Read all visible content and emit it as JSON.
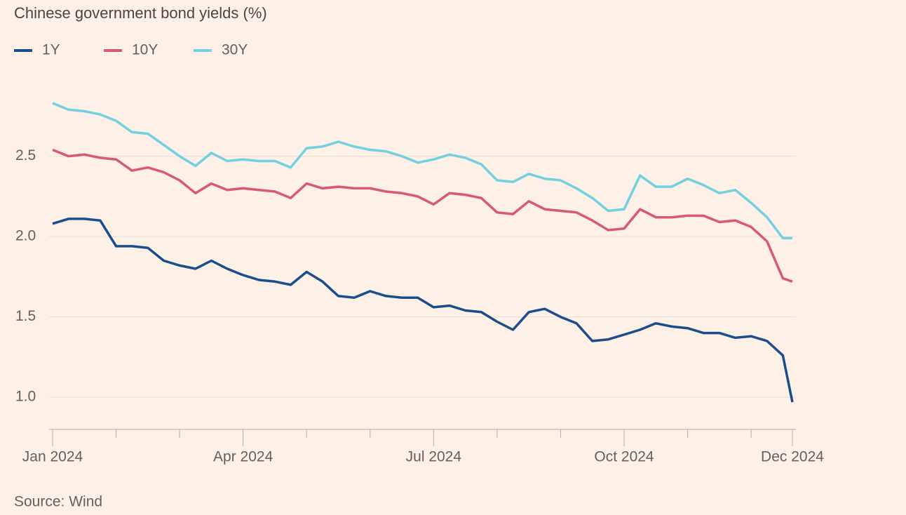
{
  "chart_data": {
    "type": "line",
    "title": "Chinese government bond yields (%)",
    "source": "Source: Wind",
    "x": [
      0,
      0.25,
      0.5,
      0.75,
      1,
      1.25,
      1.5,
      1.75,
      2,
      2.25,
      2.5,
      2.75,
      3,
      3.25,
      3.5,
      3.75,
      4,
      4.25,
      4.5,
      4.75,
      5,
      5.25,
      5.5,
      5.75,
      6,
      6.25,
      6.5,
      6.75,
      7,
      7.25,
      7.5,
      7.75,
      8,
      8.25,
      8.5,
      8.75,
      9,
      9.25,
      9.5,
      9.75,
      10,
      10.25,
      10.5,
      10.75,
      11,
      11.25,
      11.5,
      11.65
    ],
    "series": [
      {
        "name": "1Y",
        "color": "#1b4d8c",
        "values": [
          2.08,
          2.11,
          2.11,
          2.1,
          1.94,
          1.94,
          1.93,
          1.85,
          1.82,
          1.8,
          1.85,
          1.8,
          1.76,
          1.73,
          1.72,
          1.7,
          1.78,
          1.72,
          1.63,
          1.62,
          1.66,
          1.63,
          1.62,
          1.62,
          1.56,
          1.57,
          1.54,
          1.53,
          1.47,
          1.42,
          1.53,
          1.55,
          1.5,
          1.46,
          1.35,
          1.36,
          1.39,
          1.42,
          1.46,
          1.44,
          1.43,
          1.4,
          1.4,
          1.37,
          1.38,
          1.35,
          1.26,
          0.97
        ]
      },
      {
        "name": "10Y",
        "color": "#d6597a",
        "values": [
          2.54,
          2.5,
          2.51,
          2.49,
          2.48,
          2.41,
          2.43,
          2.4,
          2.35,
          2.27,
          2.33,
          2.29,
          2.3,
          2.29,
          2.28,
          2.24,
          2.33,
          2.3,
          2.31,
          2.3,
          2.3,
          2.28,
          2.27,
          2.25,
          2.2,
          2.27,
          2.26,
          2.24,
          2.15,
          2.14,
          2.22,
          2.17,
          2.16,
          2.15,
          2.1,
          2.04,
          2.05,
          2.17,
          2.12,
          2.12,
          2.13,
          2.13,
          2.09,
          2.1,
          2.06,
          1.97,
          1.74,
          1.72
        ]
      },
      {
        "name": "30Y",
        "color": "#72d0e0",
        "values": [
          2.83,
          2.79,
          2.78,
          2.76,
          2.72,
          2.65,
          2.64,
          2.57,
          2.5,
          2.44,
          2.52,
          2.47,
          2.48,
          2.47,
          2.47,
          2.43,
          2.55,
          2.56,
          2.59,
          2.56,
          2.54,
          2.53,
          2.5,
          2.46,
          2.48,
          2.51,
          2.49,
          2.45,
          2.35,
          2.34,
          2.39,
          2.36,
          2.35,
          2.3,
          2.24,
          2.16,
          2.17,
          2.38,
          2.31,
          2.31,
          2.36,
          2.32,
          2.27,
          2.29,
          2.21,
          2.12,
          1.99,
          1.99
        ]
      }
    ],
    "xlim": [
      0,
      11.65
    ],
    "xticks": [
      {
        "value": 0,
        "label": "Jan 2024"
      },
      {
        "value": 3,
        "label": "Apr 2024"
      },
      {
        "value": 6,
        "label": "Jul 2024"
      },
      {
        "value": 9,
        "label": "Oct 2024"
      },
      {
        "value": 11.65,
        "label": "Dec 2024"
      }
    ],
    "xminorticks": [
      1,
      2,
      4,
      5,
      7,
      8,
      10,
      11
    ],
    "ylim": [
      0.8,
      2.9
    ],
    "yticks": [
      {
        "value": 1,
        "label": "1.0"
      },
      1.5,
      {
        "value": 2,
        "label": "2.0"
      },
      2.5
    ],
    "grid": true
  }
}
